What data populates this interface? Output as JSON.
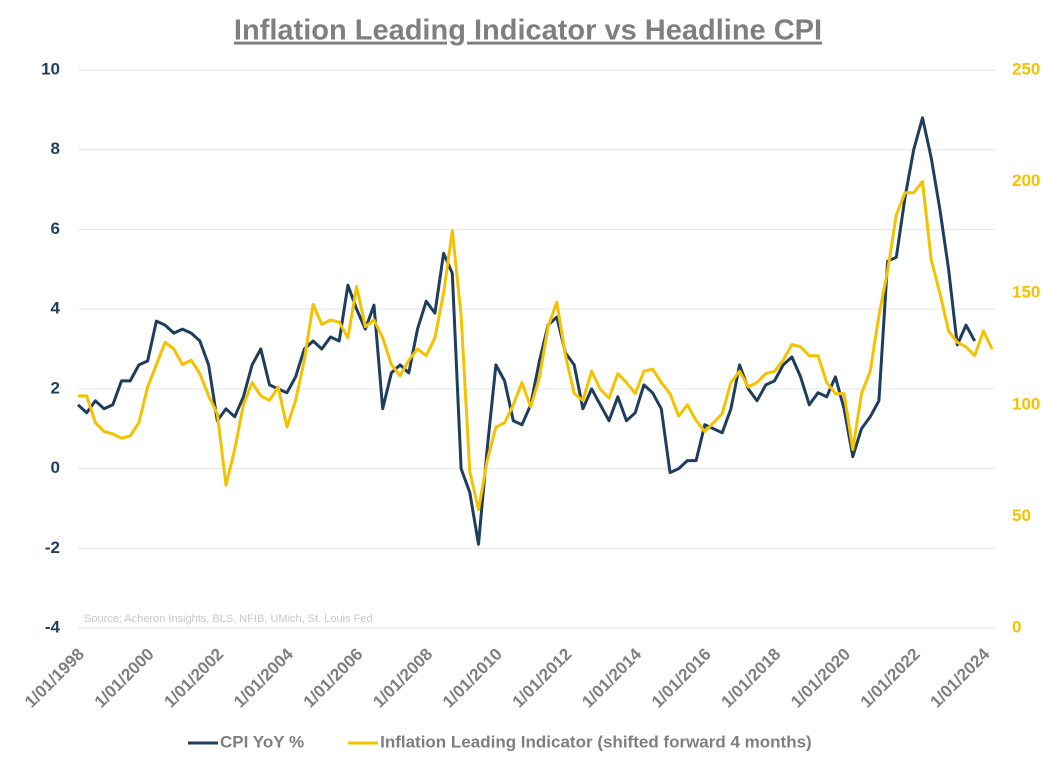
{
  "chart_data": {
    "type": "line",
    "title": "Inflation Leading Indicator vs Headline CPI",
    "annotation": "Source: Acheron Insights, BLS, NFIB, UMich, St. Louis Fed",
    "x": [
      "1/01/1998",
      "1/04/1998",
      "1/07/1998",
      "1/10/1998",
      "1/01/1999",
      "1/04/1999",
      "1/07/1999",
      "1/10/1999",
      "1/01/2000",
      "1/04/2000",
      "1/07/2000",
      "1/10/2000",
      "1/01/2001",
      "1/04/2001",
      "1/07/2001",
      "1/10/2001",
      "1/01/2002",
      "1/04/2002",
      "1/07/2002",
      "1/10/2002",
      "1/01/2003",
      "1/04/2003",
      "1/07/2003",
      "1/10/2003",
      "1/01/2004",
      "1/04/2004",
      "1/07/2004",
      "1/10/2004",
      "1/01/2005",
      "1/04/2005",
      "1/07/2005",
      "1/10/2005",
      "1/01/2006",
      "1/04/2006",
      "1/07/2006",
      "1/10/2006",
      "1/01/2007",
      "1/04/2007",
      "1/07/2007",
      "1/10/2007",
      "1/01/2008",
      "1/04/2008",
      "1/07/2008",
      "1/10/2008",
      "1/01/2009",
      "1/04/2009",
      "1/07/2009",
      "1/10/2009",
      "1/01/2010",
      "1/04/2010",
      "1/07/2010",
      "1/10/2010",
      "1/01/2011",
      "1/04/2011",
      "1/07/2011",
      "1/10/2011",
      "1/01/2012",
      "1/04/2012",
      "1/07/2012",
      "1/10/2012",
      "1/01/2013",
      "1/04/2013",
      "1/07/2013",
      "1/10/2013",
      "1/01/2014",
      "1/04/2014",
      "1/07/2014",
      "1/10/2014",
      "1/01/2015",
      "1/04/2015",
      "1/07/2015",
      "1/10/2015",
      "1/01/2016",
      "1/04/2016",
      "1/07/2016",
      "1/10/2016",
      "1/01/2017",
      "1/04/2017",
      "1/07/2017",
      "1/10/2017",
      "1/01/2018",
      "1/04/2018",
      "1/07/2018",
      "1/10/2018",
      "1/01/2019",
      "1/04/2019",
      "1/07/2019",
      "1/10/2019",
      "1/01/2020",
      "1/04/2020",
      "1/07/2020",
      "1/10/2020",
      "1/01/2021",
      "1/04/2021",
      "1/07/2021",
      "1/10/2021",
      "1/01/2022",
      "1/04/2022",
      "1/07/2022",
      "1/10/2022",
      "1/01/2023",
      "1/04/2023",
      "1/07/2023",
      "1/10/2023",
      "1/01/2024",
      "1/04/2024"
    ],
    "series": [
      {
        "name": "CPI YoY %",
        "color": "#1f3e5e",
        "values": [
          1.6,
          1.4,
          1.7,
          1.5,
          1.6,
          2.2,
          2.2,
          2.6,
          2.7,
          3.7,
          3.6,
          3.4,
          3.5,
          3.4,
          3.2,
          2.6,
          1.2,
          1.5,
          1.3,
          1.8,
          2.6,
          3.0,
          2.1,
          2.0,
          1.9,
          2.3,
          3.0,
          3.2,
          3.0,
          3.3,
          3.2,
          4.6,
          4.0,
          3.5,
          4.1,
          1.5,
          2.4,
          2.6,
          2.4,
          3.5,
          4.2,
          3.9,
          5.4,
          4.9,
          0.0,
          -0.6,
          -1.9,
          0.5,
          2.6,
          2.2,
          1.2,
          1.1,
          1.6,
          2.7,
          3.6,
          3.8,
          2.9,
          2.6,
          1.5,
          2.0,
          1.6,
          1.2,
          1.8,
          1.2,
          1.4,
          2.1,
          1.9,
          1.5,
          -0.1,
          0.0,
          0.2,
          0.2,
          1.1,
          1.0,
          0.9,
          1.5,
          2.6,
          2.0,
          1.7,
          2.1,
          2.2,
          2.6,
          2.8,
          2.3,
          1.6,
          1.9,
          1.8,
          2.3,
          1.5,
          0.3,
          1.0,
          1.3,
          1.7,
          5.2,
          5.3,
          6.8,
          8.0,
          8.8,
          7.8,
          6.5,
          5.0,
          3.1,
          3.6,
          3.2,
          null,
          null
        ]
      },
      {
        "name": "Inflation Leading Indicator (shifted forward 4 months)",
        "color": "#f5c200",
        "axis": "y2",
        "values": [
          104,
          104,
          92,
          88,
          87,
          85,
          86,
          92,
          108,
          118,
          128,
          125,
          118,
          120,
          114,
          104,
          96,
          64,
          80,
          100,
          110,
          104,
          102,
          108,
          90,
          102,
          120,
          145,
          136,
          138,
          137,
          130,
          153,
          135,
          138,
          130,
          118,
          113,
          120,
          125,
          122,
          130,
          150,
          178,
          140,
          70,
          53,
          75,
          90,
          92,
          100,
          110,
          99,
          112,
          135,
          146,
          122,
          105,
          102,
          115,
          107,
          103,
          114,
          110,
          105,
          115,
          116,
          110,
          105,
          95,
          100,
          93,
          88,
          92,
          96,
          110,
          115,
          108,
          110,
          114,
          115,
          120,
          127,
          126,
          122,
          122,
          110,
          105,
          105,
          80,
          105,
          115,
          140,
          160,
          185,
          195,
          195,
          200,
          165,
          150,
          133,
          128,
          126,
          122,
          133,
          125
        ]
      }
    ],
    "xlim": [
      "1/01/1998",
      "1/05/2024"
    ],
    "xticks": [
      "1/01/1998",
      "1/01/2000",
      "1/01/2002",
      "1/01/2004",
      "1/01/2006",
      "1/01/2008",
      "1/01/2010",
      "1/01/2012",
      "1/01/2014",
      "1/01/2016",
      "1/01/2018",
      "1/01/2020",
      "1/01/2022",
      "1/01/2024"
    ],
    "ylim": [
      -4,
      10
    ],
    "yticks": [
      -4,
      -2,
      0,
      2,
      4,
      6,
      8,
      10
    ],
    "y2lim": [
      0,
      250
    ],
    "y2ticks": [
      0,
      50,
      100,
      150,
      200,
      250
    ],
    "grid": true
  }
}
